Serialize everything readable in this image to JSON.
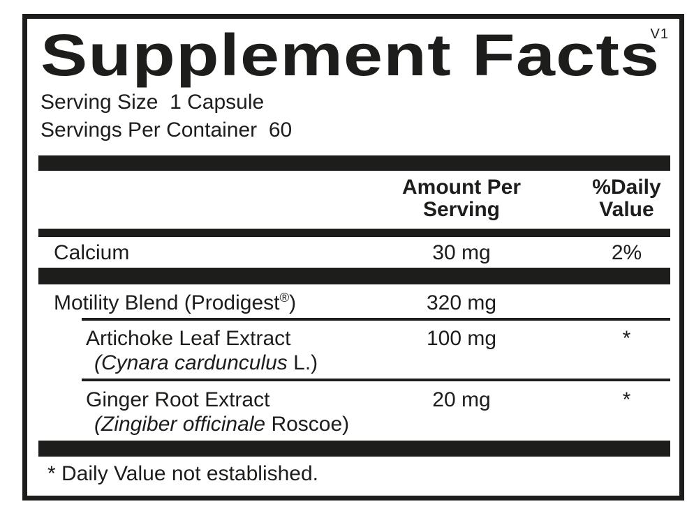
{
  "label": {
    "version": "V1",
    "title": "Supplement Facts",
    "serving_size_line": "Serving Size  1 Capsule",
    "servings_per_container_line": "Servings Per Container  60",
    "header": {
      "amount_col": "Amount Per\nServing",
      "dv_col": "%Daily\nValue"
    },
    "rows": [
      {
        "name": "Calcium",
        "amount": "30 mg",
        "dv": "2%"
      },
      {
        "name_pre": "Motility Blend (Prodigest",
        "name_sup": "®",
        "name_post": ")",
        "amount": "320 mg",
        "dv": ""
      },
      {
        "name": "Artichoke Leaf Extract",
        "species_italic": "(Cynara cardunculus",
        "species_rest": " L.)",
        "amount": "100 mg",
        "dv": "*"
      },
      {
        "name": "Ginger Root Extract",
        "species_italic": "(Zingiber officinale",
        "species_rest": " Roscoe)",
        "amount": "20 mg",
        "dv": "*"
      }
    ],
    "footnote": "* Daily Value not established."
  },
  "colors": {
    "ink": "#1d1d1b",
    "background": "#ffffff"
  }
}
